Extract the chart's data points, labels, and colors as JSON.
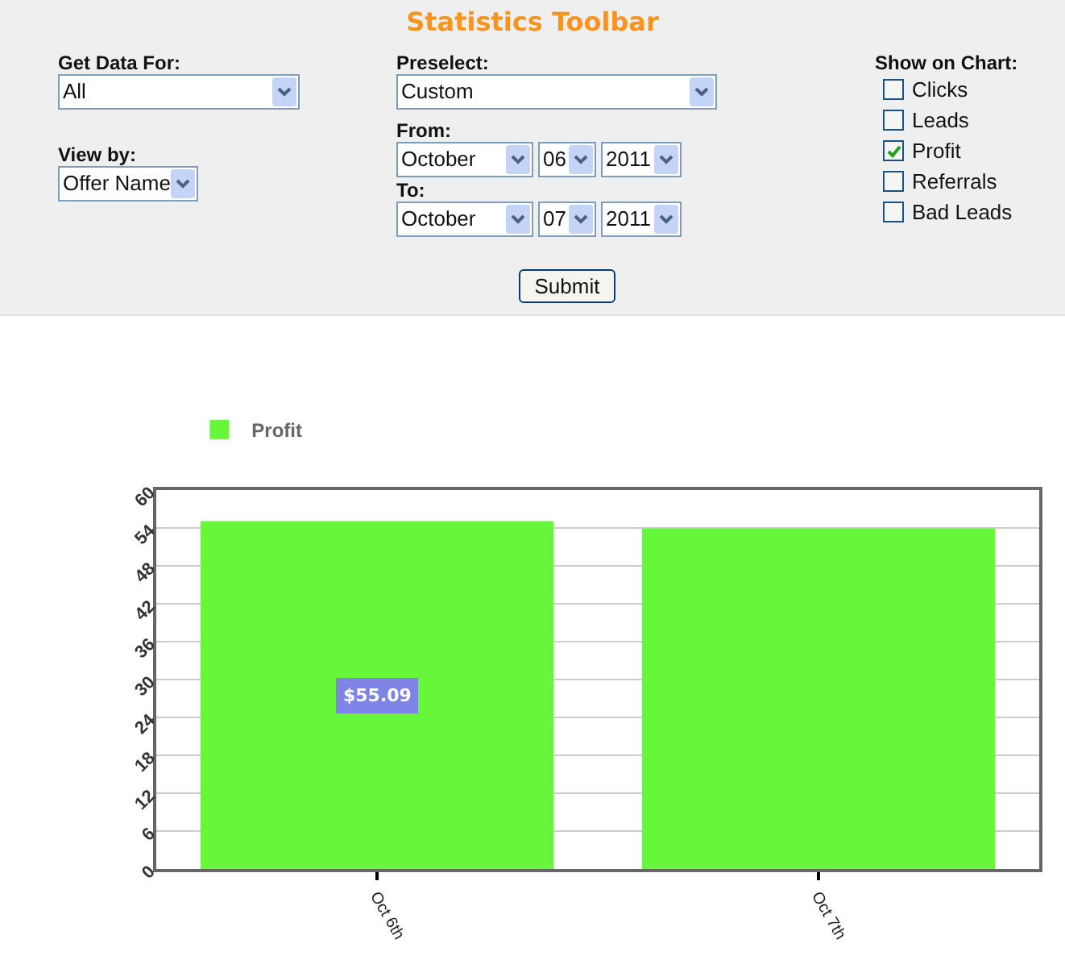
{
  "chart_data": [
    {
      "type": "other",
      "title": "Statistics Toolbar",
      "annotations": [
        "Get Data For:",
        "All",
        "View by:",
        "Offer Name",
        "Preselect:",
        "Custom",
        "From:",
        "October",
        "06",
        "2011",
        "To:",
        "October",
        "07",
        "2011",
        "Show on Chart:",
        "Clicks",
        "Leads",
        "Profit",
        "Referrals",
        "Bad Leads",
        "Submit"
      ]
    },
    {
      "type": "bar",
      "categories": [
        "Oct 6th",
        "Oct 7th"
      ],
      "series": [
        {
          "name": "Profit",
          "color": "#66f73b",
          "values": [
            55.09,
            53.9
          ],
          "value_labels": [
            "$55.09",
            null
          ]
        }
      ],
      "ylim": [
        0,
        60
      ],
      "yticks": [
        0,
        6,
        12,
        18,
        24,
        30,
        36,
        42,
        48,
        54,
        60
      ],
      "grid": "y",
      "legend": "top left"
    }
  ]
}
